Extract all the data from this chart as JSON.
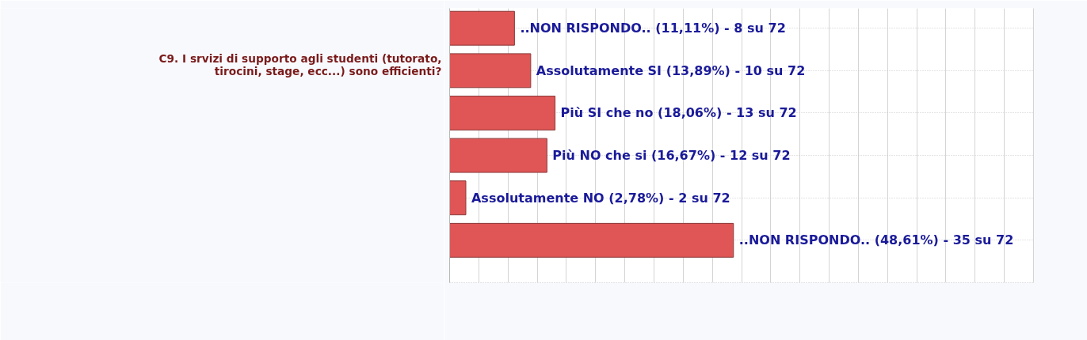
{
  "chart_data": {
    "type": "bar",
    "orientation": "horizontal",
    "categories": [
      null,
      null,
      null,
      null,
      null,
      null
    ],
    "values": [
      11.11,
      13.89,
      18.06,
      16.67,
      2.78,
      48.61
    ],
    "color": "#e05555",
    "value_labels": [
      "..NON RISPONDO.. (11,11%) - 8 su 72",
      "Assolutamente SI (13,89%) - 10 su 72",
      "Più SI che no (18,06%) - 13 su 72",
      "Più NO che si (16,67%) - 12 su 72",
      "Assolutamente NO (2,78%) - 2 su 72",
      "..NON RISPONDO.. (48,61%) - 35 su 72"
    ],
    "xlim": [
      0,
      100
    ],
    "xticks": [
      {
        "value": 0,
        "label": null
      },
      {
        "value": 5,
        "label": null
      },
      {
        "value": 10,
        "label": null
      },
      {
        "value": 15,
        "label": null
      },
      {
        "value": 20,
        "label": null
      },
      {
        "value": 25,
        "label": null
      },
      {
        "value": 30,
        "label": null
      },
      {
        "value": 35,
        "label": null
      },
      {
        "value": 40,
        "label": null
      },
      {
        "value": 45,
        "label": null
      },
      {
        "value": 50,
        "label": null
      },
      {
        "value": 55,
        "label": null
      },
      {
        "value": 60,
        "label": null
      },
      {
        "value": 65,
        "label": null
      },
      {
        "value": 70,
        "label": null
      },
      {
        "value": 75,
        "label": null
      },
      {
        "value": 80,
        "label": null
      },
      {
        "value": 85,
        "label": null
      },
      {
        "value": 90,
        "label": null
      },
      {
        "value": 95,
        "label": null
      },
      {
        "value": 100,
        "label": null
      }
    ],
    "grid": true,
    "annotations": [
      "C9. I srvizi di supporto agli studenti (tutorato, tirocini, stage, ecc...) sono efficienti?"
    ]
  }
}
